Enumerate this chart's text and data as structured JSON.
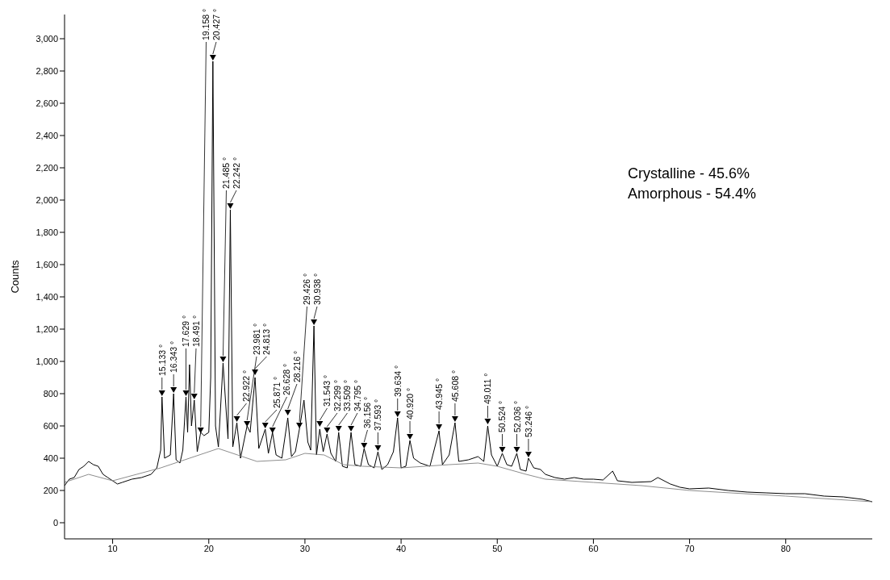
{
  "chart_data": {
    "type": "line",
    "ylabel": "Counts",
    "xlim": [
      5,
      89
    ],
    "xticks": [
      10,
      20,
      30,
      40,
      50,
      60,
      70,
      80
    ],
    "ylim": [
      -100,
      3150
    ],
    "yticks": [
      0,
      200,
      400,
      600,
      800,
      {
        "value": 1000,
        "label": "1,000"
      },
      {
        "value": 1200,
        "label": "1,200"
      },
      {
        "value": 1400,
        "label": "1,400"
      },
      {
        "value": 1600,
        "label": "1,600"
      },
      {
        "value": 1800,
        "label": "1,800"
      },
      {
        "value": 2000,
        "label": "2,000"
      },
      {
        "value": 2200,
        "label": "2,200"
      },
      {
        "value": 2400,
        "label": "2,400"
      },
      {
        "value": 2600,
        "label": "2,600"
      },
      {
        "value": 2800,
        "label": "2,800"
      },
      {
        "value": 3000,
        "label": "3,000"
      }
    ],
    "series": [
      {
        "color": "#000000",
        "x": [
          5,
          5.5,
          6,
          6.5,
          7,
          7.5,
          8,
          8.5,
          9,
          9.5,
          10,
          10.5,
          11,
          12,
          13,
          14,
          14.6,
          15.0,
          15.133,
          15.4,
          16.0,
          16.343,
          16.6,
          17.0,
          17.3,
          17.629,
          17.8,
          18.0,
          18.2,
          18.491,
          18.8,
          19.158,
          19.5,
          20.0,
          20.2,
          20.427,
          20.7,
          21.0,
          21.485,
          21.8,
          22.0,
          22.242,
          22.5,
          22.922,
          23.3,
          23.981,
          24.3,
          24.813,
          25.2,
          25.871,
          26.2,
          26.628,
          27.0,
          27.6,
          28.216,
          28.6,
          29.0,
          29.426,
          29.9,
          30.3,
          30.6,
          30.938,
          31.2,
          31.543,
          31.9,
          32.299,
          32.7,
          33.2,
          33.509,
          33.9,
          34.4,
          34.795,
          35.2,
          35.8,
          36.156,
          36.6,
          37.2,
          37.593,
          38.0,
          38.6,
          39.2,
          39.634,
          40.0,
          40.5,
          40.92,
          41.3,
          42,
          43,
          43.945,
          44.3,
          45.0,
          45.608,
          46.0,
          47,
          48,
          48.6,
          49.011,
          49.4,
          50.0,
          50.524,
          51.0,
          51.5,
          52.036,
          52.4,
          53.0,
          53.246,
          53.8,
          54.5,
          55,
          56,
          57,
          58,
          59,
          60,
          61,
          62,
          62.5,
          64,
          66,
          66.7,
          68,
          69,
          70,
          72,
          74,
          76,
          78,
          80,
          82,
          84,
          86,
          88,
          89
        ],
        "values": [
          230,
          270,
          280,
          330,
          350,
          380,
          360,
          350,
          300,
          280,
          260,
          240,
          250,
          270,
          280,
          300,
          340,
          450,
          780,
          400,
          420,
          800,
          390,
          370,
          450,
          780,
          560,
          980,
          600,
          760,
          440,
          560,
          540,
          560,
          900,
          2860,
          600,
          470,
          990,
          700,
          520,
          1940,
          470,
          620,
          400,
          600,
          560,
          900,
          460,
          580,
          430,
          560,
          420,
          400,
          650,
          410,
          440,
          580,
          760,
          500,
          450,
          1220,
          420,
          580,
          440,
          550,
          430,
          380,
          560,
          350,
          340,
          560,
          360,
          350,
          460,
          360,
          340,
          440,
          330,
          360,
          440,
          650,
          340,
          350,
          510,
          400,
          370,
          350,
          570,
          360,
          420,
          620,
          380,
          390,
          410,
          380,
          600,
          420,
          350,
          430,
          360,
          350,
          430,
          330,
          320,
          400,
          340,
          330,
          300,
          280,
          270,
          280,
          270,
          270,
          265,
          320,
          260,
          250,
          255,
          280,
          240,
          220,
          210,
          215,
          200,
          190,
          185,
          180,
          180,
          165,
          160,
          145,
          130
        ]
      },
      {
        "color": "#808080",
        "x": [
          5,
          7.5,
          10,
          15,
          18,
          21,
          23,
          25,
          28,
          30,
          32,
          34,
          36,
          40,
          45,
          48,
          50,
          53,
          55,
          60,
          65,
          70,
          80,
          89
        ],
        "values": [
          250,
          300,
          260,
          340,
          400,
          460,
          420,
          380,
          390,
          430,
          420,
          360,
          350,
          340,
          360,
          370,
          350,
          300,
          270,
          250,
          230,
          200,
          165,
          130
        ]
      },
      {
        "type": "scatter",
        "color": "#000000",
        "marker": "triangle",
        "x": [
          15.133,
          16.343,
          17.629,
          18.491,
          19.158,
          20.427,
          21.485,
          22.242,
          22.922,
          23.981,
          24.813,
          25.871,
          26.628,
          28.216,
          29.426,
          30.938,
          31.543,
          32.299,
          33.509,
          34.795,
          36.156,
          37.593,
          39.634,
          40.92,
          43.945,
          45.608,
          49.011,
          50.524,
          52.036,
          53.246
        ],
        "values": [
          800,
          820,
          800,
          780,
          570,
          2880,
          1010,
          1960,
          640,
          610,
          930,
          600,
          570,
          680,
          600,
          1240,
          610,
          570,
          580,
          580,
          475,
          460,
          670,
          530,
          590,
          640,
          625,
          450,
          450,
          420
        ]
      }
    ],
    "annotations": [
      {
        "text": "15.133 °",
        "x": 15.133,
        "y": 800
      },
      {
        "text": "16.343 °",
        "x": 16.343,
        "y": 820
      },
      {
        "text": "17.629 °",
        "x": 17.629,
        "y": 800
      },
      {
        "text": "18.491 °",
        "x": 18.491,
        "y": 780
      },
      {
        "text": "19.158 °",
        "x": 19.158,
        "y": 570
      },
      {
        "text": "20.427 °",
        "x": 20.427,
        "y": 2880
      },
      {
        "text": "21.485 °",
        "x": 21.485,
        "y": 1010
      },
      {
        "text": "22.242 °",
        "x": 22.242,
        "y": 1960
      },
      {
        "text": "22.922 °",
        "x": 22.922,
        "y": 640
      },
      {
        "text": "23.981 °",
        "x": 23.981,
        "y": 610
      },
      {
        "text": "24.813 °",
        "x": 24.813,
        "y": 930
      },
      {
        "text": "25.871 °",
        "x": 25.871,
        "y": 600
      },
      {
        "text": "26.628 °",
        "x": 26.628,
        "y": 570
      },
      {
        "text": "28.216 °",
        "x": 28.216,
        "y": 680
      },
      {
        "text": "29.426 °",
        "x": 29.426,
        "y": 600
      },
      {
        "text": "30.938 °",
        "x": 30.938,
        "y": 1240
      },
      {
        "text": "31.543 °",
        "x": 31.543,
        "y": 610
      },
      {
        "text": "32.299 °",
        "x": 32.299,
        "y": 570
      },
      {
        "text": "33.509 °",
        "x": 33.509,
        "y": 580
      },
      {
        "text": "34.795 °",
        "x": 34.795,
        "y": 580
      },
      {
        "text": "36.156 °",
        "x": 36.156,
        "y": 475
      },
      {
        "text": "37.593 °",
        "x": 37.593,
        "y": 460
      },
      {
        "text": "39.634 °",
        "x": 39.634,
        "y": 670
      },
      {
        "text": "40.920 °",
        "x": 40.92,
        "y": 530
      },
      {
        "text": "43.945 °",
        "x": 43.945,
        "y": 590
      },
      {
        "text": "45.608 °",
        "x": 45.608,
        "y": 640
      },
      {
        "text": "49.011 °",
        "x": 49.011,
        "y": 625
      },
      {
        "text": "50.524 °",
        "x": 50.524,
        "y": 450
      },
      {
        "text": "52.036 °",
        "x": 52.036,
        "y": 450
      },
      {
        "text": "53.246 °",
        "x": 53.246,
        "y": 420
      },
      "Crystalline - 45.6%",
      "Amorphous - 54.4%"
    ]
  }
}
